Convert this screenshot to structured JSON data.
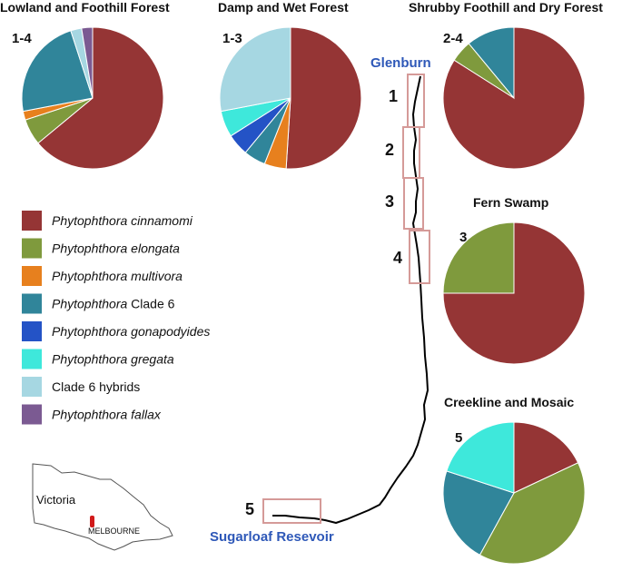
{
  "colors": {
    "cinnamomi": "#953535",
    "elongata": "#7f9a3d",
    "multivora": "#e7801e",
    "clade6": "#30859a",
    "gonapodyides": "#2453c6",
    "gregata": "#3ee8db",
    "hybrids": "#a6d7e2",
    "fallax": "#7b5a92",
    "place": "#2e58b8",
    "track": "#000000",
    "box": "#d59a98",
    "mel": "#d11a1a"
  },
  "legend": [
    {
      "key": "cinnamomi",
      "genus": "Phytophthora",
      "species": "cinnamomi",
      "species_italic": true
    },
    {
      "key": "elongata",
      "genus": "Phytophthora",
      "species": "elongata",
      "species_italic": true
    },
    {
      "key": "multivora",
      "genus": "Phytophthora",
      "species": "multivora",
      "species_italic": true
    },
    {
      "key": "clade6",
      "genus": "Phytophthora",
      "species": "Clade 6",
      "species_italic": false
    },
    {
      "key": "gonapodyides",
      "genus": "Phytophthora",
      "species": "gonapodyides",
      "species_italic": true
    },
    {
      "key": "gregata",
      "genus": "Phytophthora",
      "species": "gregata",
      "species_italic": true
    },
    {
      "key": "hybrids",
      "genus": "",
      "species": "Clade 6 hybrids",
      "species_italic": false
    },
    {
      "key": "fallax",
      "genus": "Phytophthora",
      "species": "fallax",
      "species_italic": true
    }
  ],
  "chart_data": [
    {
      "type": "pie",
      "title": "Lowland and Foothill Forest",
      "label": "1-4",
      "slices": [
        {
          "key": "cinnamomi",
          "value": 64
        },
        {
          "key": "elongata",
          "value": 6
        },
        {
          "key": "multivora",
          "value": 2
        },
        {
          "key": "clade6",
          "value": 23
        },
        {
          "key": "hybrids",
          "value": 2.5
        },
        {
          "key": "fallax",
          "value": 2.5
        }
      ]
    },
    {
      "type": "pie",
      "title": "Damp and Wet Forest",
      "label": "1-3",
      "slices": [
        {
          "key": "cinnamomi",
          "value": 51
        },
        {
          "key": "multivora",
          "value": 5
        },
        {
          "key": "clade6",
          "value": 5
        },
        {
          "key": "gonapodyides",
          "value": 5
        },
        {
          "key": "gregata",
          "value": 6
        },
        {
          "key": "hybrids",
          "value": 28
        }
      ]
    },
    {
      "type": "pie",
      "title": "Shrubby Foothill and Dry Forest",
      "label": "2-4",
      "slices": [
        {
          "key": "cinnamomi",
          "value": 84
        },
        {
          "key": "elongata",
          "value": 5
        },
        {
          "key": "clade6",
          "value": 11
        }
      ]
    },
    {
      "type": "pie",
      "title": "Fern Swamp",
      "label": "3",
      "slices": [
        {
          "key": "cinnamomi",
          "value": 75
        },
        {
          "key": "elongata",
          "value": 25
        }
      ]
    },
    {
      "type": "pie",
      "title": "Creekline and Mosaic",
      "label": "5",
      "slices": [
        {
          "key": "cinnamomi",
          "value": 18
        },
        {
          "key": "elongata",
          "value": 40
        },
        {
          "key": "clade6",
          "value": 22
        },
        {
          "key": "gregata",
          "value": 20
        }
      ]
    }
  ],
  "map": {
    "top_place": "Glenburn",
    "bottom_place": "Sugarloaf Resevoir",
    "segments": [
      "1",
      "2",
      "3",
      "4",
      "5"
    ]
  },
  "inset": {
    "state": "Victoria",
    "city": "MELBOURNE"
  }
}
